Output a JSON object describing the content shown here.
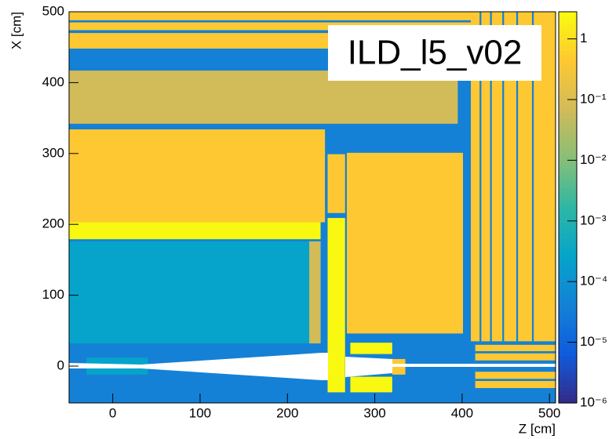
{
  "chart_data": {
    "type": "heatmap",
    "annotation": "ILD_l5_v02",
    "xlabel": "Z [cm]",
    "ylabel": "X [cm]",
    "xlim": [
      -50,
      507
    ],
    "ylim": [
      -52,
      500
    ],
    "xticks": [
      0,
      100,
      200,
      300,
      400,
      500
    ],
    "yticks": [
      0,
      100,
      200,
      300,
      400,
      500
    ],
    "zlim": [
      1e-06,
      2.8
    ],
    "zlog": true,
    "zticks": [
      {
        "value": 1e-06,
        "label": "10⁻⁶"
      },
      {
        "value": 1e-05,
        "label": "10⁻⁵"
      },
      {
        "value": 0.0001,
        "label": "10⁻⁴"
      },
      {
        "value": 0.001,
        "label": "10⁻³"
      },
      {
        "value": 0.01,
        "label": "10⁻²"
      },
      {
        "value": 0.1,
        "label": "10⁻¹"
      },
      1
    ],
    "palette": [
      "#352a87",
      "#0f5cdd",
      "#1481d6",
      "#06a4ca",
      "#2eb7a4",
      "#87bf77",
      "#d1bb59",
      "#fec832",
      "#f9fb0e"
    ],
    "regions": [
      {
        "z": [
          -50,
          507
        ],
        "x": [
          -52,
          500
        ],
        "value": 4e-05
      },
      {
        "z": [
          -50,
          410
        ],
        "x": [
          448,
          500
        ],
        "value": 0.44
      },
      {
        "z": [
          -50,
          410
        ],
        "x": [
          470,
          474
        ],
        "value": 4e-05
      },
      {
        "z": [
          -50,
          410
        ],
        "x": [
          485,
          488
        ],
        "value": 4e-05
      },
      {
        "z": [
          -50,
          395
        ],
        "x": [
          342,
          417
        ],
        "value": 0.07
      },
      {
        "z": [
          -50,
          243
        ],
        "x": [
          203,
          334
        ],
        "value": 0.44
      },
      {
        "z": [
          -50,
          238
        ],
        "x": [
          179,
          203
        ],
        "value": 2.5
      },
      {
        "z": [
          -50,
          238
        ],
        "x": [
          32,
          176
        ],
        "value": 0.00026
      },
      {
        "z": [
          225,
          238
        ],
        "x": [
          32,
          176
        ],
        "value": 0.07
      },
      {
        "z": [
          268,
          401
        ],
        "x": [
          46,
          301
        ],
        "value": 0.44
      },
      {
        "z": [
          246,
          266
        ],
        "x": [
          -37,
          209
        ],
        "value": 2.5
      },
      {
        "z": [
          246,
          266
        ],
        "x": [
          216,
          299
        ],
        "value": 0.44
      },
      {
        "z": [
          410,
          507
        ],
        "x": [
          35,
          500
        ],
        "value": 0.44
      },
      {
        "z": [
          420,
          422
        ],
        "x": [
          35,
          500
        ],
        "value": 4e-05
      },
      {
        "z": [
          432,
          434
        ],
        "x": [
          35,
          500
        ],
        "value": 4e-05
      },
      {
        "z": [
          446,
          448
        ],
        "x": [
          35,
          500
        ],
        "value": 4e-05
      },
      {
        "z": [
          462,
          464
        ],
        "x": [
          35,
          500
        ],
        "value": 4e-05
      },
      {
        "z": [
          480,
          482
        ],
        "x": [
          35,
          500
        ],
        "value": 4e-05
      },
      {
        "z": [
          415,
          507
        ],
        "x": [
          -31,
          30
        ],
        "value": 0.44
      },
      {
        "z": [
          415,
          507
        ],
        "x": [
          18,
          21
        ],
        "value": 4e-05
      },
      {
        "z": [
          415,
          507
        ],
        "x": [
          -8,
          8
        ],
        "value": 4e-05
      },
      {
        "z": [
          415,
          507
        ],
        "x": [
          -21,
          -18
        ],
        "value": 4e-05
      },
      {
        "z": [
          272,
          320
        ],
        "x": [
          17,
          33
        ],
        "value": 2.5
      },
      {
        "z": [
          272,
          320
        ],
        "x": [
          -37,
          -15
        ],
        "value": 2.5
      },
      {
        "z": [
          320,
          335
        ],
        "x": [
          -12,
          10
        ],
        "value": 0.44
      },
      {
        "z": [
          -30,
          40
        ],
        "x": [
          -12,
          12
        ],
        "value": 0.00026
      }
    ]
  }
}
